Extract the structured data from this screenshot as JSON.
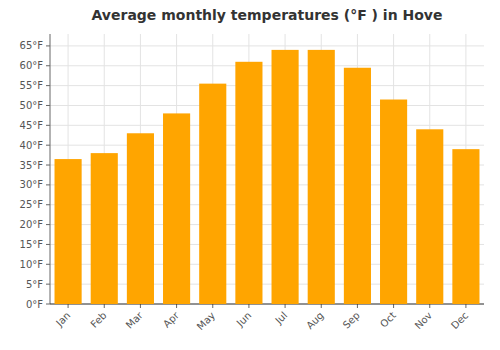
{
  "chart_data": {
    "type": "bar",
    "title": "Average monthly temperatures (°F ) in Hove",
    "categories": [
      "Jan",
      "Feb",
      "Mar",
      "Apr",
      "May",
      "Jun",
      "Jul",
      "Aug",
      "Sep",
      "Oct",
      "Nov",
      "Dec"
    ],
    "values": [
      36.5,
      38.0,
      43.0,
      48.0,
      55.5,
      61.0,
      64.0,
      64.0,
      59.5,
      51.5,
      44.0,
      39.0
    ],
    "color": "#FFA500",
    "ylim": [
      0,
      68
    ],
    "yticks": [
      {
        "value": 0,
        "label": "0°F"
      },
      {
        "value": 5,
        "label": "5°F"
      },
      {
        "value": 10,
        "label": "10°F"
      },
      {
        "value": 15,
        "label": "15°F"
      },
      {
        "value": 20,
        "label": "20°F"
      },
      {
        "value": 25,
        "label": "25°F"
      },
      {
        "value": 30,
        "label": "30°F"
      },
      {
        "value": 35,
        "label": "35°F"
      },
      {
        "value": 40,
        "label": "40°F"
      },
      {
        "value": 45,
        "label": "45°F"
      },
      {
        "value": 50,
        "label": "50°F"
      },
      {
        "value": 55,
        "label": "55°F"
      },
      {
        "value": 60,
        "label": "60°F"
      },
      {
        "value": 65,
        "label": "65°F"
      }
    ],
    "grid": true
  }
}
